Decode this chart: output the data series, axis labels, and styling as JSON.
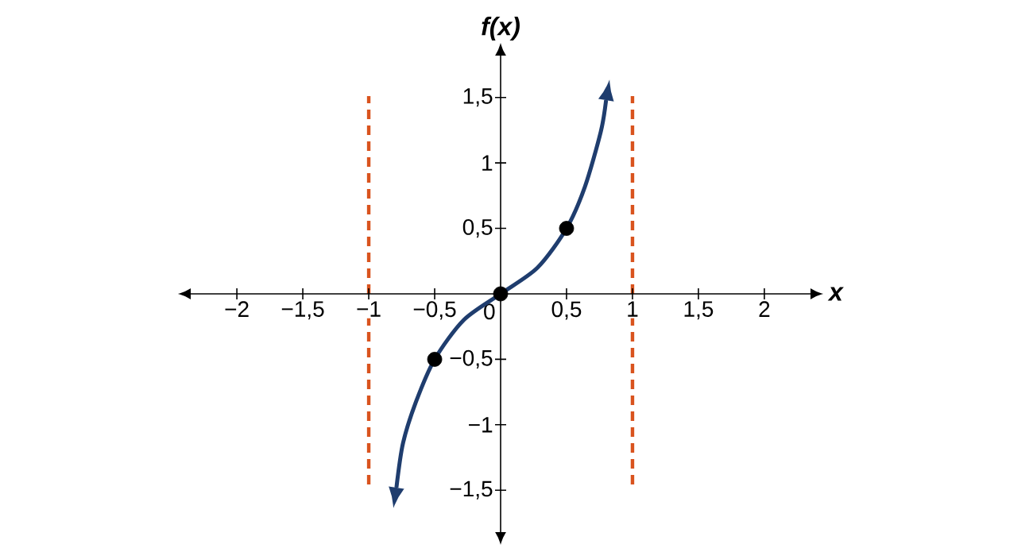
{
  "chart_data": {
    "type": "line",
    "xlabel": "x",
    "ylabel": "f(x)",
    "xlim": [
      -2.35,
      2.35
    ],
    "ylim": [
      -1.82,
      1.82
    ],
    "xticks": [
      {
        "value": -2,
        "label": "−2"
      },
      {
        "value": -1.5,
        "label": "−1,5"
      },
      {
        "value": -1,
        "label": "−1"
      },
      {
        "value": -0.5,
        "label": "−0,5"
      },
      {
        "value": 0,
        "label": "0"
      },
      {
        "value": 0.5,
        "label": "0,5"
      },
      {
        "value": 1,
        "label": "1"
      },
      {
        "value": 1.5,
        "label": "1,5"
      },
      {
        "value": 2,
        "label": "2"
      }
    ],
    "yticks": [
      {
        "value": -1.5,
        "label": "−1,5"
      },
      {
        "value": -1,
        "label": "−1"
      },
      {
        "value": -0.5,
        "label": "−0,5"
      },
      {
        "value": 0.5,
        "label": "0,5"
      },
      {
        "value": 1,
        "label": "1"
      },
      {
        "value": 1.5,
        "label": "1,5"
      }
    ],
    "grid": false,
    "series": [
      {
        "color": "#1f3d6e",
        "marker": "none",
        "x": [
          -0.79,
          -0.74,
          -0.64,
          -0.5,
          -0.28,
          0,
          0.28,
          0.5,
          0.64,
          0.76,
          0.8
        ],
        "values": [
          -1.48,
          -1.14,
          -0.82,
          -0.5,
          -0.2,
          0,
          0.2,
          0.5,
          0.82,
          1.24,
          1.48
        ]
      },
      {
        "type": "scatter",
        "color": "#000000",
        "marker": "circle",
        "x": [
          -0.5,
          0,
          0.5
        ],
        "values": [
          -0.5,
          0,
          0.5
        ]
      }
    ],
    "ref_lines": [
      {
        "axis": "x",
        "value": -1,
        "color": "#d9531e",
        "line_style": "dashed"
      },
      {
        "axis": "x",
        "value": 1,
        "color": "#d9531e",
        "line_style": "dashed"
      }
    ]
  }
}
